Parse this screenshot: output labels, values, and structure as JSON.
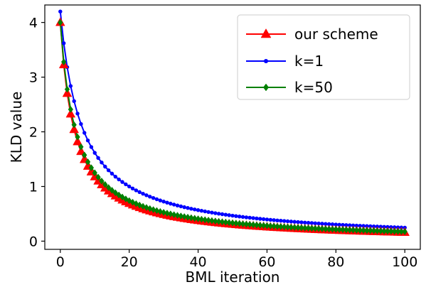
{
  "chart_data": {
    "type": "line",
    "title": "",
    "xlabel": "BML iteration",
    "ylabel": "KLD value",
    "xlim": [
      -4.5,
      104.5
    ],
    "ylim": [
      -0.15,
      4.32
    ],
    "xticks": [
      0,
      20,
      40,
      60,
      80,
      100
    ],
    "yticks": [
      0,
      1,
      2,
      3,
      4
    ],
    "grid": false,
    "legend_position": "top-right",
    "series": [
      {
        "name": "our scheme",
        "color": "#ff0000",
        "marker": "triangle",
        "markevery": 1,
        "model": {
          "kind": "rational",
          "a": 4.0,
          "b": 0.24,
          "c": 0.0
        },
        "samples": [
          [
            0,
            4.0
          ],
          [
            1,
            3.22
          ],
          [
            2,
            2.6
          ],
          [
            3,
            2.13
          ],
          [
            5,
            1.45
          ],
          [
            10,
            0.8
          ],
          [
            20,
            0.3
          ],
          [
            50,
            0.1
          ],
          [
            100,
            0.02
          ]
        ]
      },
      {
        "name": "k=1",
        "color": "#0000ff",
        "marker": "circle",
        "markevery": 1,
        "model": {
          "kind": "rational",
          "a": 4.2,
          "b": 0.16,
          "c": 0.0
        },
        "samples": [
          [
            0,
            4.2
          ],
          [
            1,
            3.6
          ],
          [
            2,
            3.08
          ],
          [
            5,
            2.0
          ],
          [
            10,
            1.3
          ],
          [
            20,
            0.55
          ],
          [
            50,
            0.2
          ],
          [
            100,
            0.07
          ]
        ]
      },
      {
        "name": "k=50",
        "color": "#008000",
        "marker": "diamond",
        "markevery": 1,
        "model": {
          "kind": "rational",
          "a": 4.0,
          "b": 0.22,
          "c": 0.0
        },
        "samples": [
          [
            0,
            4.0
          ],
          [
            1,
            3.26
          ],
          [
            2,
            2.65
          ],
          [
            5,
            1.5
          ],
          [
            10,
            0.85
          ],
          [
            20,
            0.33
          ],
          [
            50,
            0.12
          ],
          [
            100,
            0.04
          ]
        ]
      }
    ]
  }
}
